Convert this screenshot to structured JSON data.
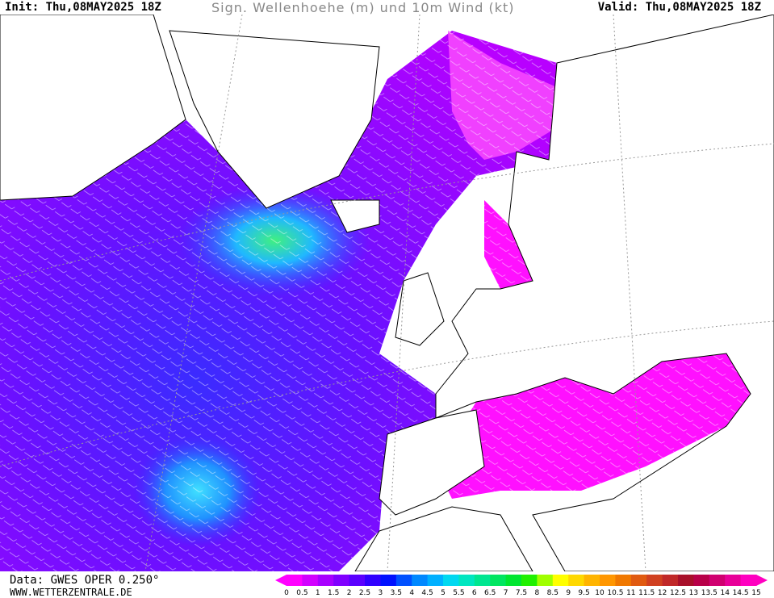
{
  "header": {
    "init": "Init: Thu,08MAY2025 18Z",
    "title": "Sign. Wellenhoehe (m) und 10m Wind (kt)",
    "valid": "Valid: Thu,08MAY2025 18Z"
  },
  "footer": {
    "source": "Data: GWES OPER 0.250°",
    "website": "WWW.WETTERZENTRALE.DE"
  },
  "legend": {
    "labels": [
      "0",
      "0.5",
      "1",
      "1.5",
      "2",
      "2.5",
      "3",
      "3.5",
      "4",
      "4.5",
      "5",
      "5.5",
      "6",
      "6.5",
      "7",
      "7.5",
      "8",
      "8.5",
      "9",
      "9.5",
      "10",
      "10.5",
      "11",
      "11.5",
      "12",
      "12.5",
      "13",
      "13.5",
      "14",
      "14.5",
      "15"
    ],
    "colors": [
      "#ff00ff",
      "#d200ff",
      "#a800ff",
      "#8000ff",
      "#5a00ff",
      "#3000ff",
      "#0010ff",
      "#0050ff",
      "#0088ff",
      "#00b0ff",
      "#00d8f0",
      "#00e6c0",
      "#00e690",
      "#00e660",
      "#00e630",
      "#20f000",
      "#a0ff00",
      "#ffff00",
      "#ffd800",
      "#ffb400",
      "#ff9600",
      "#f07800",
      "#e05a10",
      "#d04020",
      "#c02828",
      "#a8102a",
      "#b80048",
      "#d00070",
      "#e80098",
      "#ff00c0"
    ]
  }
}
